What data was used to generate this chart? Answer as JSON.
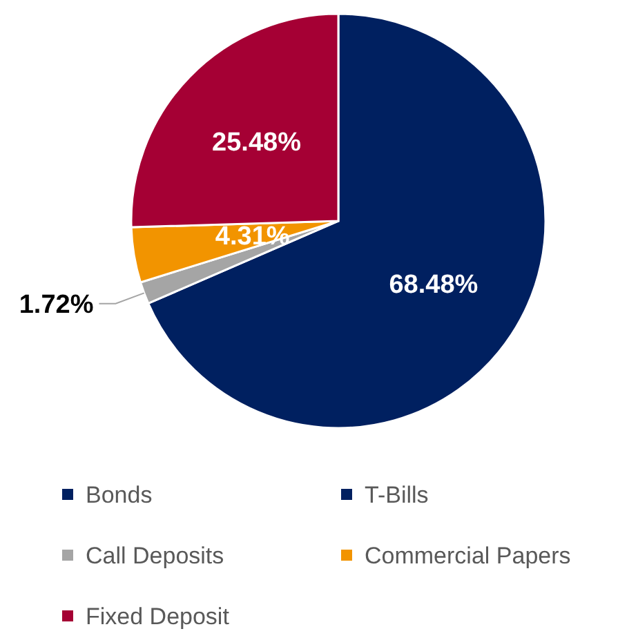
{
  "chart_data": {
    "type": "pie",
    "categories": [
      "Bonds",
      "T-Bills",
      "Call Deposits",
      "Commercial Papers",
      "Fixed Deposit"
    ],
    "values": [
      68.48,
      0,
      1.72,
      4.31,
      25.48
    ],
    "colors": [
      "#002060",
      "#002060",
      "#a5a5a5",
      "#f29400",
      "#a50034"
    ],
    "value_labels": [
      "68.48%",
      null,
      "1.72%",
      "4.31%",
      "25.48%"
    ],
    "legend": "bottom"
  }
}
